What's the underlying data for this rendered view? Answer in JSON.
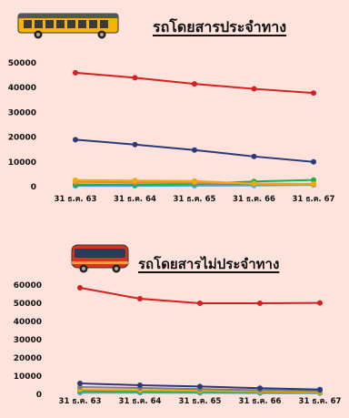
{
  "charts": [
    {
      "title": "รถโดยสารประจำทาง",
      "icon": "yellow-bus-icon"
    },
    {
      "title": "รถโดยสารไม่ประจำทาง",
      "icon": "red-coach-bus-icon"
    }
  ],
  "chart_data": [
    {
      "type": "line",
      "title": "รถโดยสารประจำทาง",
      "categories": [
        "31 ธ.ค. 63",
        "31 ธ.ค. 64",
        "31 ธ.ค. 65",
        "31 ธ.ค. 66",
        "31 ธ.ค. 67"
      ],
      "yticks": [
        0,
        10000,
        20000,
        30000,
        40000,
        50000
      ],
      "ylim": [
        0,
        50000
      ],
      "series": [
        {
          "color": "#d42020",
          "values": [
            46000,
            44000,
            41500,
            39500,
            37800
          ]
        },
        {
          "color": "#2b3a7a",
          "values": [
            19000,
            17000,
            14800,
            12200,
            10000
          ]
        },
        {
          "color": "#f2a900",
          "values": [
            2600,
            2500,
            2300,
            1200,
            900
          ]
        },
        {
          "color": "#e08a4a",
          "values": [
            1900,
            1800,
            1600,
            1300,
            1100
          ]
        },
        {
          "color": "#1fb04c",
          "values": [
            700,
            800,
            1100,
            2100,
            2700
          ]
        },
        {
          "color": "#4aa3df",
          "values": [
            300,
            300,
            400,
            500,
            700
          ]
        },
        {
          "color": "#7f7f7f",
          "values": [
            900,
            900,
            900,
            800,
            800
          ]
        }
      ],
      "grid": false,
      "legend": "none"
    },
    {
      "type": "line",
      "title": "รถโดยสารไม่ประจำทาง",
      "categories": [
        "31 ธ.ค. 63",
        "31 ธ.ค. 64",
        "31 ธ.ค. 65",
        "31 ธ.ค. 66",
        "31 ธ.ค. 67"
      ],
      "yticks": [
        0,
        10000,
        20000,
        30000,
        40000,
        50000,
        60000
      ],
      "ylim": [
        0,
        60000
      ],
      "series": [
        {
          "color": "#d42020",
          "values": [
            58500,
            52500,
            50000,
            50000,
            50200
          ]
        },
        {
          "color": "#2b3a7a",
          "values": [
            6000,
            5000,
            4300,
            3400,
            2600
          ]
        },
        {
          "color": "#7f7f7f",
          "values": [
            4000,
            3500,
            2900,
            2300,
            1900
          ]
        },
        {
          "color": "#f2a900",
          "values": [
            2600,
            2300,
            2000,
            1600,
            1200
          ]
        },
        {
          "color": "#1fb04c",
          "values": [
            1800,
            1600,
            1400,
            1100,
            900
          ]
        },
        {
          "color": "#4aa3df",
          "values": [
            900,
            900,
            800,
            700,
            600
          ]
        }
      ],
      "grid": false,
      "legend": "none"
    }
  ]
}
